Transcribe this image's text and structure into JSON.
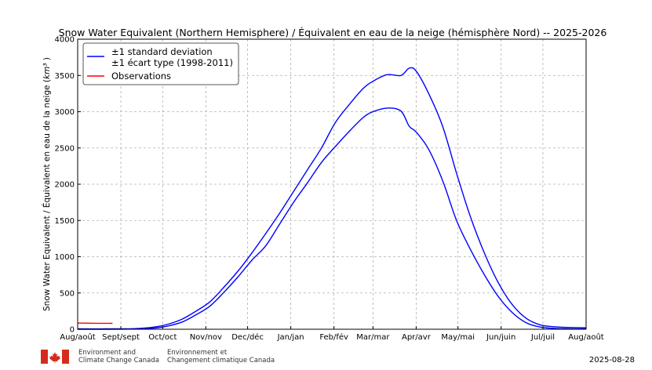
{
  "chart_data": {
    "type": "line",
    "title": "Snow Water Equivalent (Northern Hemisphere) / Équivalent en eau de la neige (hémisphère Nord) -- 2025-2026",
    "ylabel": "Snow Water Equivalent / Équivalent en eau de la neige (km³)",
    "xlabel": "",
    "ylim": [
      0,
      4000
    ],
    "yticks": [
      0,
      500,
      1000,
      1500,
      2000,
      2500,
      3000,
      3500,
      4000
    ],
    "xlim": [
      0,
      365
    ],
    "xticks": [
      {
        "day": 0,
        "label": "Aug/août"
      },
      {
        "day": 31,
        "label": "Sept/sept"
      },
      {
        "day": 61,
        "label": "Oct/oct"
      },
      {
        "day": 92,
        "label": "Nov/nov"
      },
      {
        "day": 122,
        "label": "Dec/déc"
      },
      {
        "day": 153,
        "label": "Jan/jan"
      },
      {
        "day": 184,
        "label": "Feb/fév"
      },
      {
        "day": 212,
        "label": "Mar/mar"
      },
      {
        "day": 243,
        "label": "Apr/avr"
      },
      {
        "day": 273,
        "label": "May/mai"
      },
      {
        "day": 304,
        "label": "Jun/juin"
      },
      {
        "day": 334,
        "label": "Jul/juil"
      },
      {
        "day": 365,
        "label": "Aug/août"
      }
    ],
    "grid": true,
    "legend_position": "top-left",
    "series": [
      {
        "name": "±1 standard deviation\n±1 écart type (1998-2011)",
        "color": "#0000ff",
        "x": [
          0,
          20,
          40,
          55,
          65,
          75,
          85,
          95,
          105,
          115,
          125,
          135,
          145,
          155,
          165,
          175,
          185,
          195,
          205,
          212,
          222,
          232,
          238,
          243,
          252,
          262,
          272,
          282,
          292,
          302,
          312,
          322,
          332,
          342,
          352,
          365
        ],
        "y": [
          5,
          5,
          8,
          30,
          70,
          140,
          250,
          380,
          580,
          800,
          1050,
          1320,
          1600,
          1900,
          2200,
          2500,
          2850,
          3100,
          3320,
          3420,
          3510,
          3500,
          3600,
          3560,
          3250,
          2800,
          2150,
          1550,
          1050,
          640,
          340,
          150,
          60,
          35,
          25,
          20
        ]
      },
      {
        "name": "",
        "color": "#0000ff",
        "x": [
          0,
          20,
          40,
          55,
          65,
          75,
          85,
          95,
          105,
          115,
          125,
          135,
          145,
          155,
          165,
          175,
          185,
          195,
          205,
          212,
          222,
          232,
          238,
          243,
          252,
          262,
          272,
          282,
          292,
          302,
          312,
          322,
          332,
          342,
          352,
          365
        ],
        "y": [
          0,
          0,
          3,
          15,
          45,
          100,
          200,
          320,
          510,
          720,
          950,
          1150,
          1450,
          1750,
          2020,
          2300,
          2520,
          2730,
          2920,
          3000,
          3050,
          3010,
          2800,
          2720,
          2480,
          2050,
          1500,
          1100,
          750,
          450,
          230,
          90,
          30,
          12,
          6,
          5
        ]
      },
      {
        "name": "Observations",
        "color": "#ff0000",
        "x": [
          0,
          5,
          10,
          15,
          20,
          25
        ],
        "y": [
          85,
          84,
          83,
          82,
          82,
          81
        ]
      }
    ]
  },
  "footer": {
    "org_en": "Environment and\nClimate Change Canada",
    "org_fr": "Environnement et\nChangement climatique Canada",
    "date": "2025-08-28"
  }
}
